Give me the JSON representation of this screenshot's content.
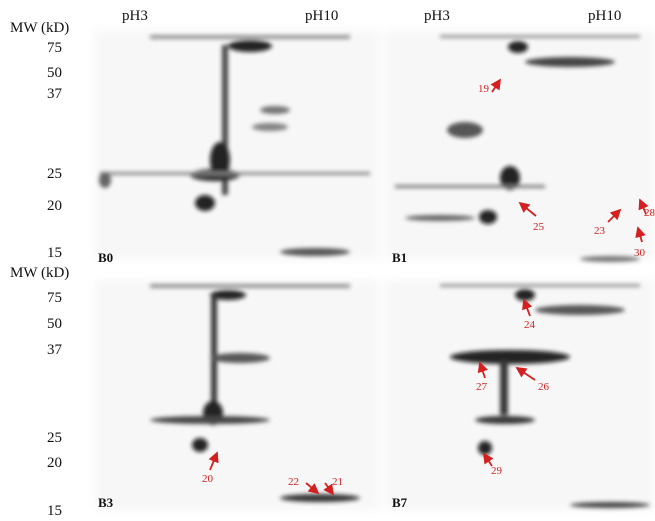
{
  "panels": [
    {
      "label": "B0",
      "ph_left": "pH3",
      "ph_right": "pH10",
      "mw_title": "MW (kD)",
      "mw_markers": [
        "75",
        "50",
        "37",
        "25",
        "20",
        "15"
      ],
      "annotations": []
    },
    {
      "label": "B1",
      "ph_left": "pH3",
      "ph_right": "pH10",
      "annotations": [
        "19",
        "25",
        "23",
        "28",
        "30"
      ]
    },
    {
      "label": "B3",
      "mw_title": "MW (kD)",
      "mw_markers": [
        "75",
        "50",
        "37",
        "25",
        "20",
        "15"
      ],
      "annotations": [
        "20",
        "22",
        "21"
      ]
    },
    {
      "label": "B7",
      "annotations": [
        "24",
        "27",
        "26",
        "29"
      ]
    }
  ]
}
